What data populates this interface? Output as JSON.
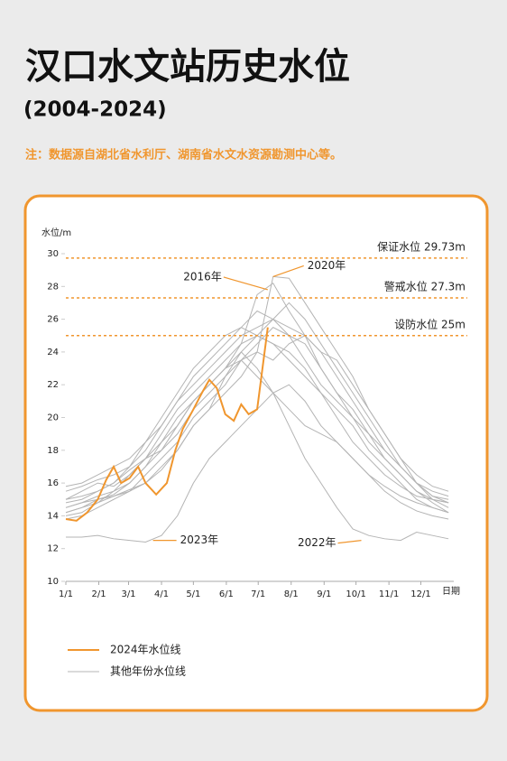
{
  "chart_data": {
    "type": "line",
    "title": "汉口水文站历史水位",
    "subtitle": "(2004-2024)",
    "note": "注：数据源自湖北省水利厅、湖南省水文水资源勘测中心等。",
    "y_label": "水位/m",
    "x_label": "日期",
    "xlim": [
      0,
      365
    ],
    "ylim": [
      10,
      30
    ],
    "yticks": [
      10,
      12,
      14,
      16,
      18,
      20,
      22,
      24,
      26,
      28,
      30
    ],
    "xticks": [
      {
        "value": 0,
        "label": "1/1"
      },
      {
        "value": 31,
        "label": "2/1"
      },
      {
        "value": 59,
        "label": "3/1"
      },
      {
        "value": 90,
        "label": "4/1"
      },
      {
        "value": 120,
        "label": "5/1"
      },
      {
        "value": 151,
        "label": "6/1"
      },
      {
        "value": 181,
        "label": "7/1"
      },
      {
        "value": 212,
        "label": "8/1"
      },
      {
        "value": 243,
        "label": "9/1"
      },
      {
        "value": 273,
        "label": "10/1"
      },
      {
        "value": 304,
        "label": "11/1"
      },
      {
        "value": 334,
        "label": "12/1"
      }
    ],
    "reference_lines": [
      {
        "label": "保证水位 29.73m",
        "value": 29.73
      },
      {
        "label": "警戒水位 27.3m",
        "value": 27.3
      },
      {
        "label": "设防水位 25m",
        "value": 25
      }
    ],
    "series": [
      {
        "name": "2024年水位线",
        "color": "#f0962e",
        "x": [
          0,
          10,
          20,
          30,
          38,
          45,
          52,
          60,
          68,
          75,
          85,
          95,
          103,
          110,
          120,
          128,
          135,
          142,
          150,
          158,
          165,
          172,
          180,
          185,
          190
        ],
        "values": [
          13.8,
          13.7,
          14.2,
          15,
          16.2,
          17,
          16,
          16.3,
          17,
          16,
          15.3,
          16,
          18,
          19.3,
          20.5,
          21.5,
          22.3,
          21.8,
          20.2,
          19.8,
          20.8,
          20.2,
          20.5,
          23,
          25.5
        ]
      }
    ],
    "other_series": {
      "name": "其他年份水位线",
      "color": "#b4b4b4",
      "x": [
        0,
        15,
        30,
        45,
        60,
        75,
        90,
        105,
        120,
        135,
        150,
        165,
        180,
        195,
        210,
        225,
        240,
        255,
        270,
        285,
        300,
        315,
        330,
        345,
        360
      ],
      "lines": [
        [
          14.5,
          14.8,
          15,
          15.2,
          15.6,
          16,
          16.8,
          18,
          19.5,
          20.5,
          21.5,
          22.5,
          24,
          28.6,
          28.5,
          27,
          25.5,
          24,
          22.5,
          20.5,
          19,
          17.5,
          16,
          15,
          14.5
        ],
        [
          15,
          15.5,
          16,
          15.8,
          16.5,
          17.5,
          18.5,
          19.5,
          21,
          22,
          23,
          24.5,
          27.5,
          28.2,
          26.5,
          25,
          23,
          21.5,
          20,
          18.5,
          17.5,
          16.5,
          15.5,
          15,
          14.8
        ],
        [
          14.2,
          14.5,
          14.8,
          15.2,
          15.5,
          16,
          17,
          18,
          19.5,
          20.5,
          22.5,
          24,
          23,
          21.5,
          19.5,
          17.5,
          16,
          14.5,
          13.2,
          12.8,
          12.6,
          12.5,
          13,
          12.8,
          12.6
        ],
        [
          12.7,
          12.7,
          12.8,
          12.6,
          12.5,
          12.4,
          12.8,
          14,
          16,
          17.5,
          18.5,
          19.5,
          20.5,
          21.5,
          22,
          21,
          19.5,
          18.5,
          17.5,
          16.5,
          15.5,
          14.8,
          14.3,
          14,
          13.8
        ],
        [
          14,
          14.2,
          14.8,
          15.5,
          16.5,
          17.5,
          19,
          20.5,
          21.5,
          22.5,
          23.5,
          24.5,
          25,
          24.5,
          23.5,
          22.5,
          21.5,
          20.5,
          19.5,
          18,
          17,
          16,
          15,
          14.5,
          14.2
        ],
        [
          15.5,
          15.8,
          16.2,
          16.5,
          17,
          18,
          19.5,
          21,
          22.5,
          23.5,
          24.5,
          25.5,
          26.5,
          26,
          25,
          23.5,
          22,
          21,
          20,
          19,
          18,
          17,
          16,
          15.5,
          15.2
        ],
        [
          14.8,
          15,
          15.5,
          16,
          17,
          18.5,
          20,
          21.5,
          23,
          24,
          25,
          25.5,
          25,
          24.5,
          24,
          23,
          21.5,
          20,
          18.5,
          17.5,
          16.5,
          15.8,
          15.2,
          15,
          14.8
        ],
        [
          13.8,
          14,
          14.5,
          15,
          15.5,
          16.5,
          17.5,
          18.5,
          20,
          21,
          22,
          23.5,
          24.5,
          25.5,
          25,
          24.5,
          23,
          21.5,
          20.5,
          19,
          17.5,
          16.5,
          15.5,
          14.8,
          14.2
        ],
        [
          14.5,
          14.8,
          15.2,
          15.5,
          16,
          17,
          18.5,
          20,
          21,
          22,
          23,
          24,
          25,
          26,
          27,
          26,
          24.5,
          23,
          21.5,
          20,
          18.5,
          17,
          16,
          15.2,
          14.8
        ],
        [
          15,
          15.2,
          15.5,
          16,
          16.8,
          17.5,
          18,
          19,
          20.5,
          21.5,
          22.5,
          23.5,
          24,
          23.5,
          24.5,
          25,
          24,
          22.5,
          21,
          19.5,
          18,
          17,
          16,
          15.2,
          15
        ],
        [
          14.2,
          14.5,
          15,
          15.3,
          16,
          17,
          18,
          19.5,
          21,
          22,
          23,
          23.5,
          22.5,
          21.5,
          20.5,
          19.5,
          19,
          18.5,
          17.5,
          16.5,
          15.8,
          15.2,
          14.8,
          14.5,
          14.2
        ],
        [
          15.8,
          16,
          16.5,
          17,
          17.5,
          18.5,
          19.5,
          21,
          22,
          23,
          24,
          25,
          25.5,
          26,
          25.5,
          25,
          24,
          23.5,
          22,
          20.5,
          19,
          17.5,
          16.5,
          15.8,
          15.5
        ]
      ]
    },
    "annotations": [
      {
        "text": "2016年",
        "x": 190,
        "y": 27.8
      },
      {
        "text": "2020年",
        "x": 195,
        "y": 28.6
      },
      {
        "text": "2023年",
        "x": 82,
        "y": 12.5
      },
      {
        "text": "2022年",
        "x": 278,
        "y": 12.5
      }
    ]
  }
}
